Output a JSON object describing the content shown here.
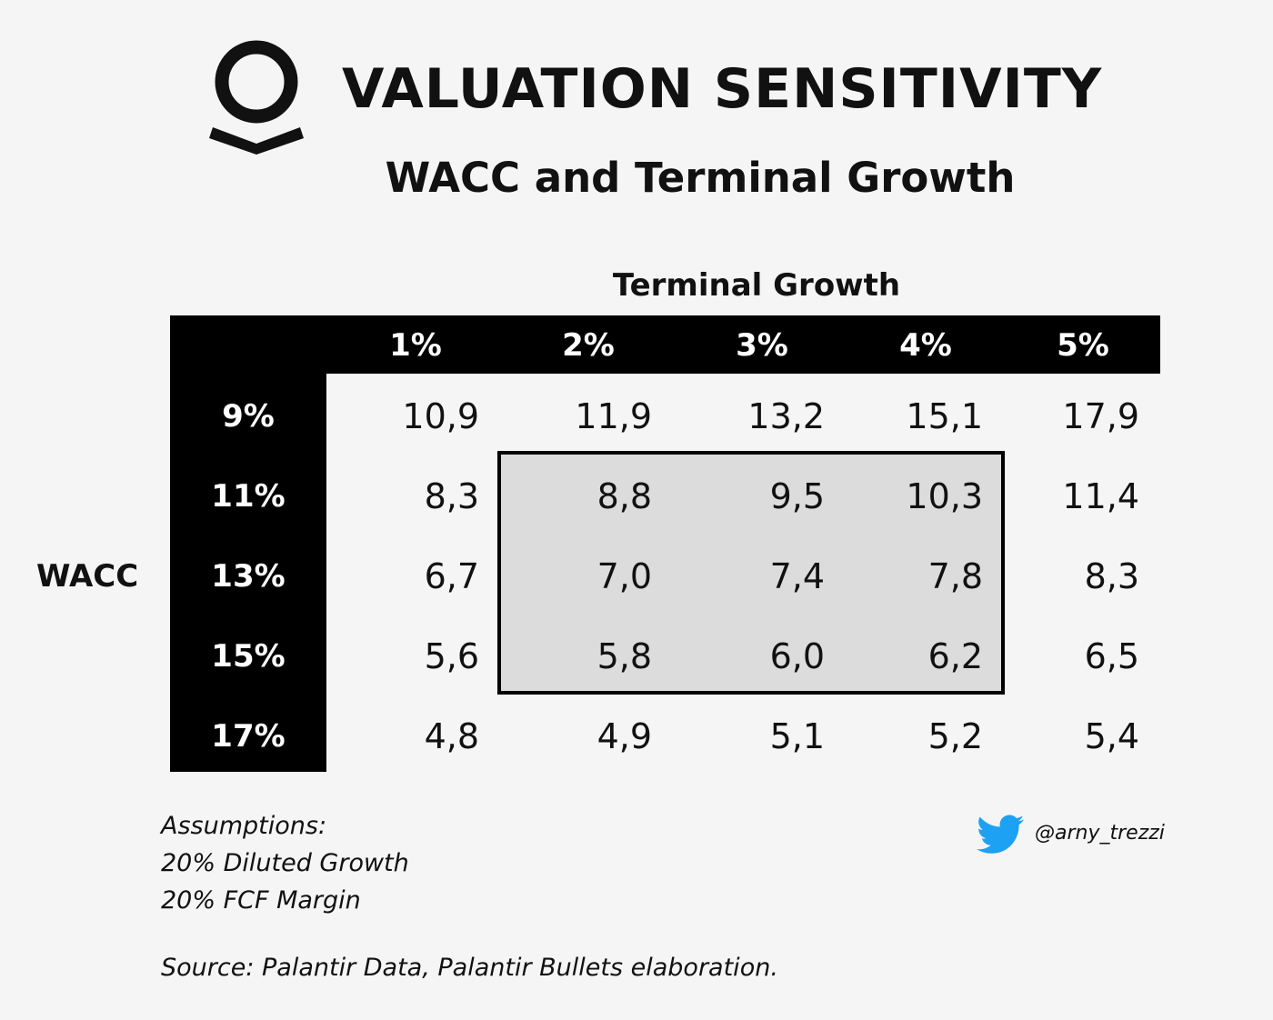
{
  "header": {
    "title": "VALUATION SENSITIVITY",
    "subtitle": "WACC and Terminal Growth",
    "logo_icon": "palantir-logo-icon"
  },
  "chart_data": {
    "type": "table",
    "col_axis_label": "Terminal Growth",
    "row_axis_label": "WACC",
    "columns": [
      "1%",
      "2%",
      "3%",
      "4%",
      "5%"
    ],
    "rows": [
      "9%",
      "11%",
      "13%",
      "15%",
      "17%"
    ],
    "values": [
      [
        "10,9",
        "11,9",
        "13,2",
        "15,1",
        "17,9"
      ],
      [
        "8,3",
        "8,8",
        "9,5",
        "10,3",
        "11,4"
      ],
      [
        "6,7",
        "7,0",
        "7,4",
        "7,8",
        "8,3"
      ],
      [
        "5,6",
        "5,8",
        "6,0",
        "6,2",
        "6,5"
      ],
      [
        "4,8",
        "4,9",
        "5,1",
        "5,2",
        "5,4"
      ]
    ],
    "highlight": {
      "rows": [
        "11%",
        "13%",
        "15%"
      ],
      "columns": [
        "2%",
        "3%",
        "4%"
      ]
    }
  },
  "notes": {
    "heading": "Assumptions:",
    "line1": "20% Diluted Growth",
    "line2": "20% FCF Margin"
  },
  "source": "Source: Palantir Data, Palantir Bullets elaboration.",
  "social": {
    "icon": "twitter-icon",
    "handle": "@arny_trezzi",
    "color": "#1da1f2"
  }
}
